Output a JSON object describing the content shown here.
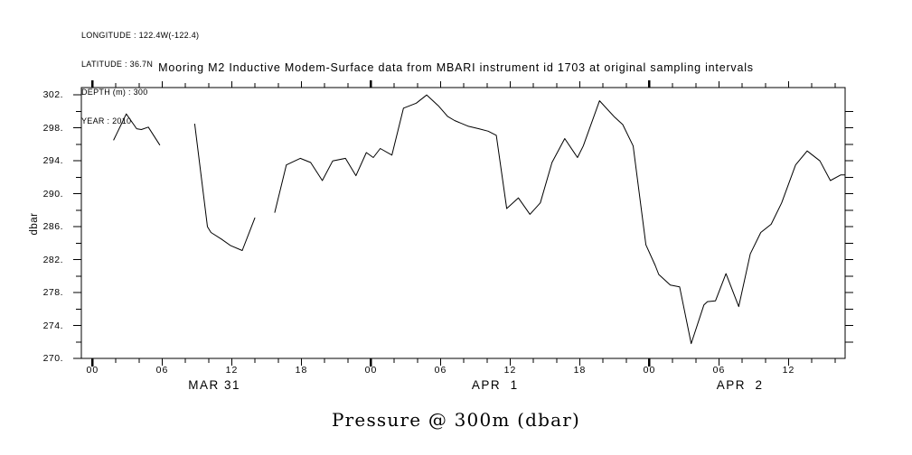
{
  "header_info": {
    "longitude": "LONGITUDE : 122.4W(-122.4)",
    "latitude": "LATITUDE : 36.7N",
    "depth": "DEPTH (m) : 300",
    "year": "YEAR : 2010"
  },
  "chart_data": {
    "type": "line",
    "title": "Mooring M2 Inductive Modem-Surface data from MBARI instrument id 1703 at original sampling intervals",
    "xlabel": "Pressure @ 300m (dbar)",
    "ylabel": "dbar",
    "x_unit": "hours since MAR 31 00:00 (2010)",
    "xlim": [
      -0.97,
      64.87
    ],
    "ylim": [
      270,
      302.9
    ],
    "grid": false,
    "legend": false,
    "line_color": "#000000",
    "background_color": "#ffffff",
    "x_major_ticks": [
      0,
      6,
      12,
      18,
      24,
      30,
      36,
      42,
      48,
      54,
      60
    ],
    "x_major_tick_labels": [
      "00",
      "06",
      "12",
      "18",
      "00",
      "06",
      "12",
      "18",
      "00",
      "06",
      "12"
    ],
    "x_bold_ticks": [
      0,
      24,
      48
    ],
    "x_minor_step": 2,
    "day_labels": [
      {
        "text": "MAR 31",
        "hour": 10.5
      },
      {
        "text": "APR  1",
        "hour": 34.7
      },
      {
        "text": "APR  2",
        "hour": 55.8
      }
    ],
    "y_major_ticks": [
      270,
      274,
      278,
      282,
      286,
      290,
      294,
      298,
      302
    ],
    "y_major_tick_labels": [
      "270.",
      "274.",
      "278.",
      "282.",
      "286.",
      "290.",
      "294.",
      "298.",
      "302."
    ],
    "y_minor_step": 2,
    "series": [
      {
        "name": "Pressure @ 300m (dbar)",
        "segments": [
          [
            [
              1.8,
              296.5
            ],
            [
              2.9,
              299.7
            ],
            [
              3.8,
              297.9
            ],
            [
              4.2,
              297.8
            ],
            [
              4.8,
              298.1
            ],
            [
              5.8,
              295.9
            ]
          ],
          [
            [
              8.8,
              298.5
            ],
            [
              9.9,
              286.0
            ],
            [
              10.2,
              285.3
            ],
            [
              11.1,
              284.5
            ],
            [
              11.9,
              283.7
            ],
            [
              12.9,
              283.1
            ],
            [
              14.0,
              287.1
            ]
          ],
          [
            [
              15.7,
              287.7
            ],
            [
              16.7,
              293.5
            ],
            [
              17.9,
              294.3
            ],
            [
              18.8,
              293.8
            ],
            [
              19.8,
              291.6
            ],
            [
              20.7,
              294.0
            ],
            [
              21.8,
              294.3
            ],
            [
              22.7,
              292.2
            ],
            [
              23.6,
              295.0
            ],
            [
              24.2,
              294.4
            ],
            [
              24.8,
              295.5
            ],
            [
              25.8,
              294.7
            ],
            [
              26.8,
              300.4
            ],
            [
              27.9,
              301.0
            ],
            [
              28.8,
              302.0
            ],
            [
              29.8,
              300.7
            ],
            [
              30.6,
              299.4
            ],
            [
              31.2,
              298.9
            ],
            [
              32.4,
              298.2
            ],
            [
              33.3,
              297.9
            ],
            [
              34.1,
              297.6
            ],
            [
              34.8,
              297.1
            ],
            [
              35.7,
              288.2
            ],
            [
              36.7,
              289.5
            ],
            [
              37.7,
              287.5
            ],
            [
              38.6,
              288.9
            ],
            [
              39.6,
              293.8
            ],
            [
              40.7,
              296.7
            ],
            [
              41.8,
              294.4
            ],
            [
              42.3,
              295.8
            ],
            [
              43.7,
              301.3
            ],
            [
              45.0,
              299.3
            ],
            [
              45.7,
              298.4
            ],
            [
              46.6,
              295.8
            ],
            [
              47.7,
              283.8
            ],
            [
              48.5,
              281.3
            ],
            [
              48.8,
              280.2
            ],
            [
              49.8,
              278.9
            ],
            [
              50.6,
              278.7
            ],
            [
              51.6,
              271.8
            ],
            [
              52.7,
              276.5
            ],
            [
              53.0,
              276.9
            ],
            [
              53.7,
              277.0
            ],
            [
              54.6,
              280.3
            ],
            [
              55.7,
              276.3
            ],
            [
              56.7,
              282.7
            ],
            [
              57.6,
              285.3
            ],
            [
              58.5,
              286.3
            ],
            [
              59.4,
              288.9
            ],
            [
              60.6,
              293.5
            ],
            [
              61.6,
              295.2
            ],
            [
              62.7,
              294.0
            ],
            [
              63.6,
              291.6
            ],
            [
              64.5,
              292.3
            ],
            [
              64.9,
              292.3
            ]
          ]
        ]
      }
    ]
  }
}
